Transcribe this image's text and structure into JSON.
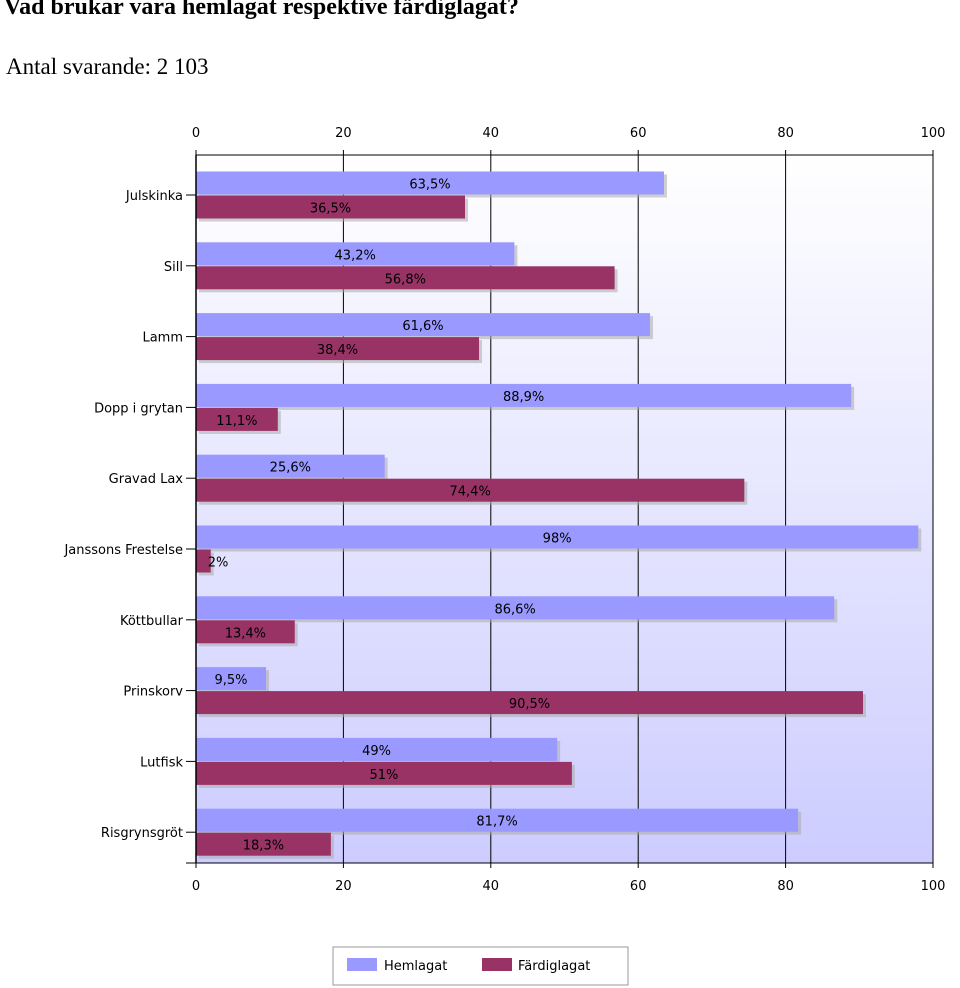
{
  "title": "Vad brukar vara hemlagat respektive färdiglagat?",
  "subtitle": "Antal svarande: 2 103",
  "colors": {
    "hemlagat": "#9999ff",
    "fardiglagat": "#993366",
    "plot_top": "#ffffff",
    "plot_bottom": "#ccccff"
  },
  "chart_data": {
    "type": "bar",
    "orientation": "horizontal",
    "categories": [
      "Julskinka",
      "Sill",
      "Lamm",
      "Dopp i grytan",
      "Gravad Lax",
      "Janssons Frestelse",
      "Köttbullar",
      "Prinskorv",
      "Lutfisk",
      "Risgrynsgröt"
    ],
    "series": [
      {
        "name": "Hemlagat",
        "values": [
          63.5,
          43.2,
          61.6,
          88.9,
          25.6,
          98,
          86.6,
          9.5,
          49,
          81.7
        ],
        "labels": [
          "63,5%",
          "43,2%",
          "61,6%",
          "88,9%",
          "25,6%",
          "98%",
          "86,6%",
          "9,5%",
          "49%",
          "81,7%"
        ]
      },
      {
        "name": "Färdiglagat",
        "values": [
          36.5,
          56.8,
          38.4,
          11.1,
          74.4,
          2,
          13.4,
          90.5,
          51,
          18.3
        ],
        "labels": [
          "36,5%",
          "56,8%",
          "38,4%",
          "11,1%",
          "74,4%",
          "2%",
          "13,4%",
          "90,5%",
          "51%",
          "18,3%"
        ]
      }
    ],
    "xlim": [
      0,
      100
    ],
    "xticks": [
      "0",
      "20",
      "40",
      "60",
      "80",
      "100"
    ],
    "grid": true,
    "legend": "bottom"
  }
}
